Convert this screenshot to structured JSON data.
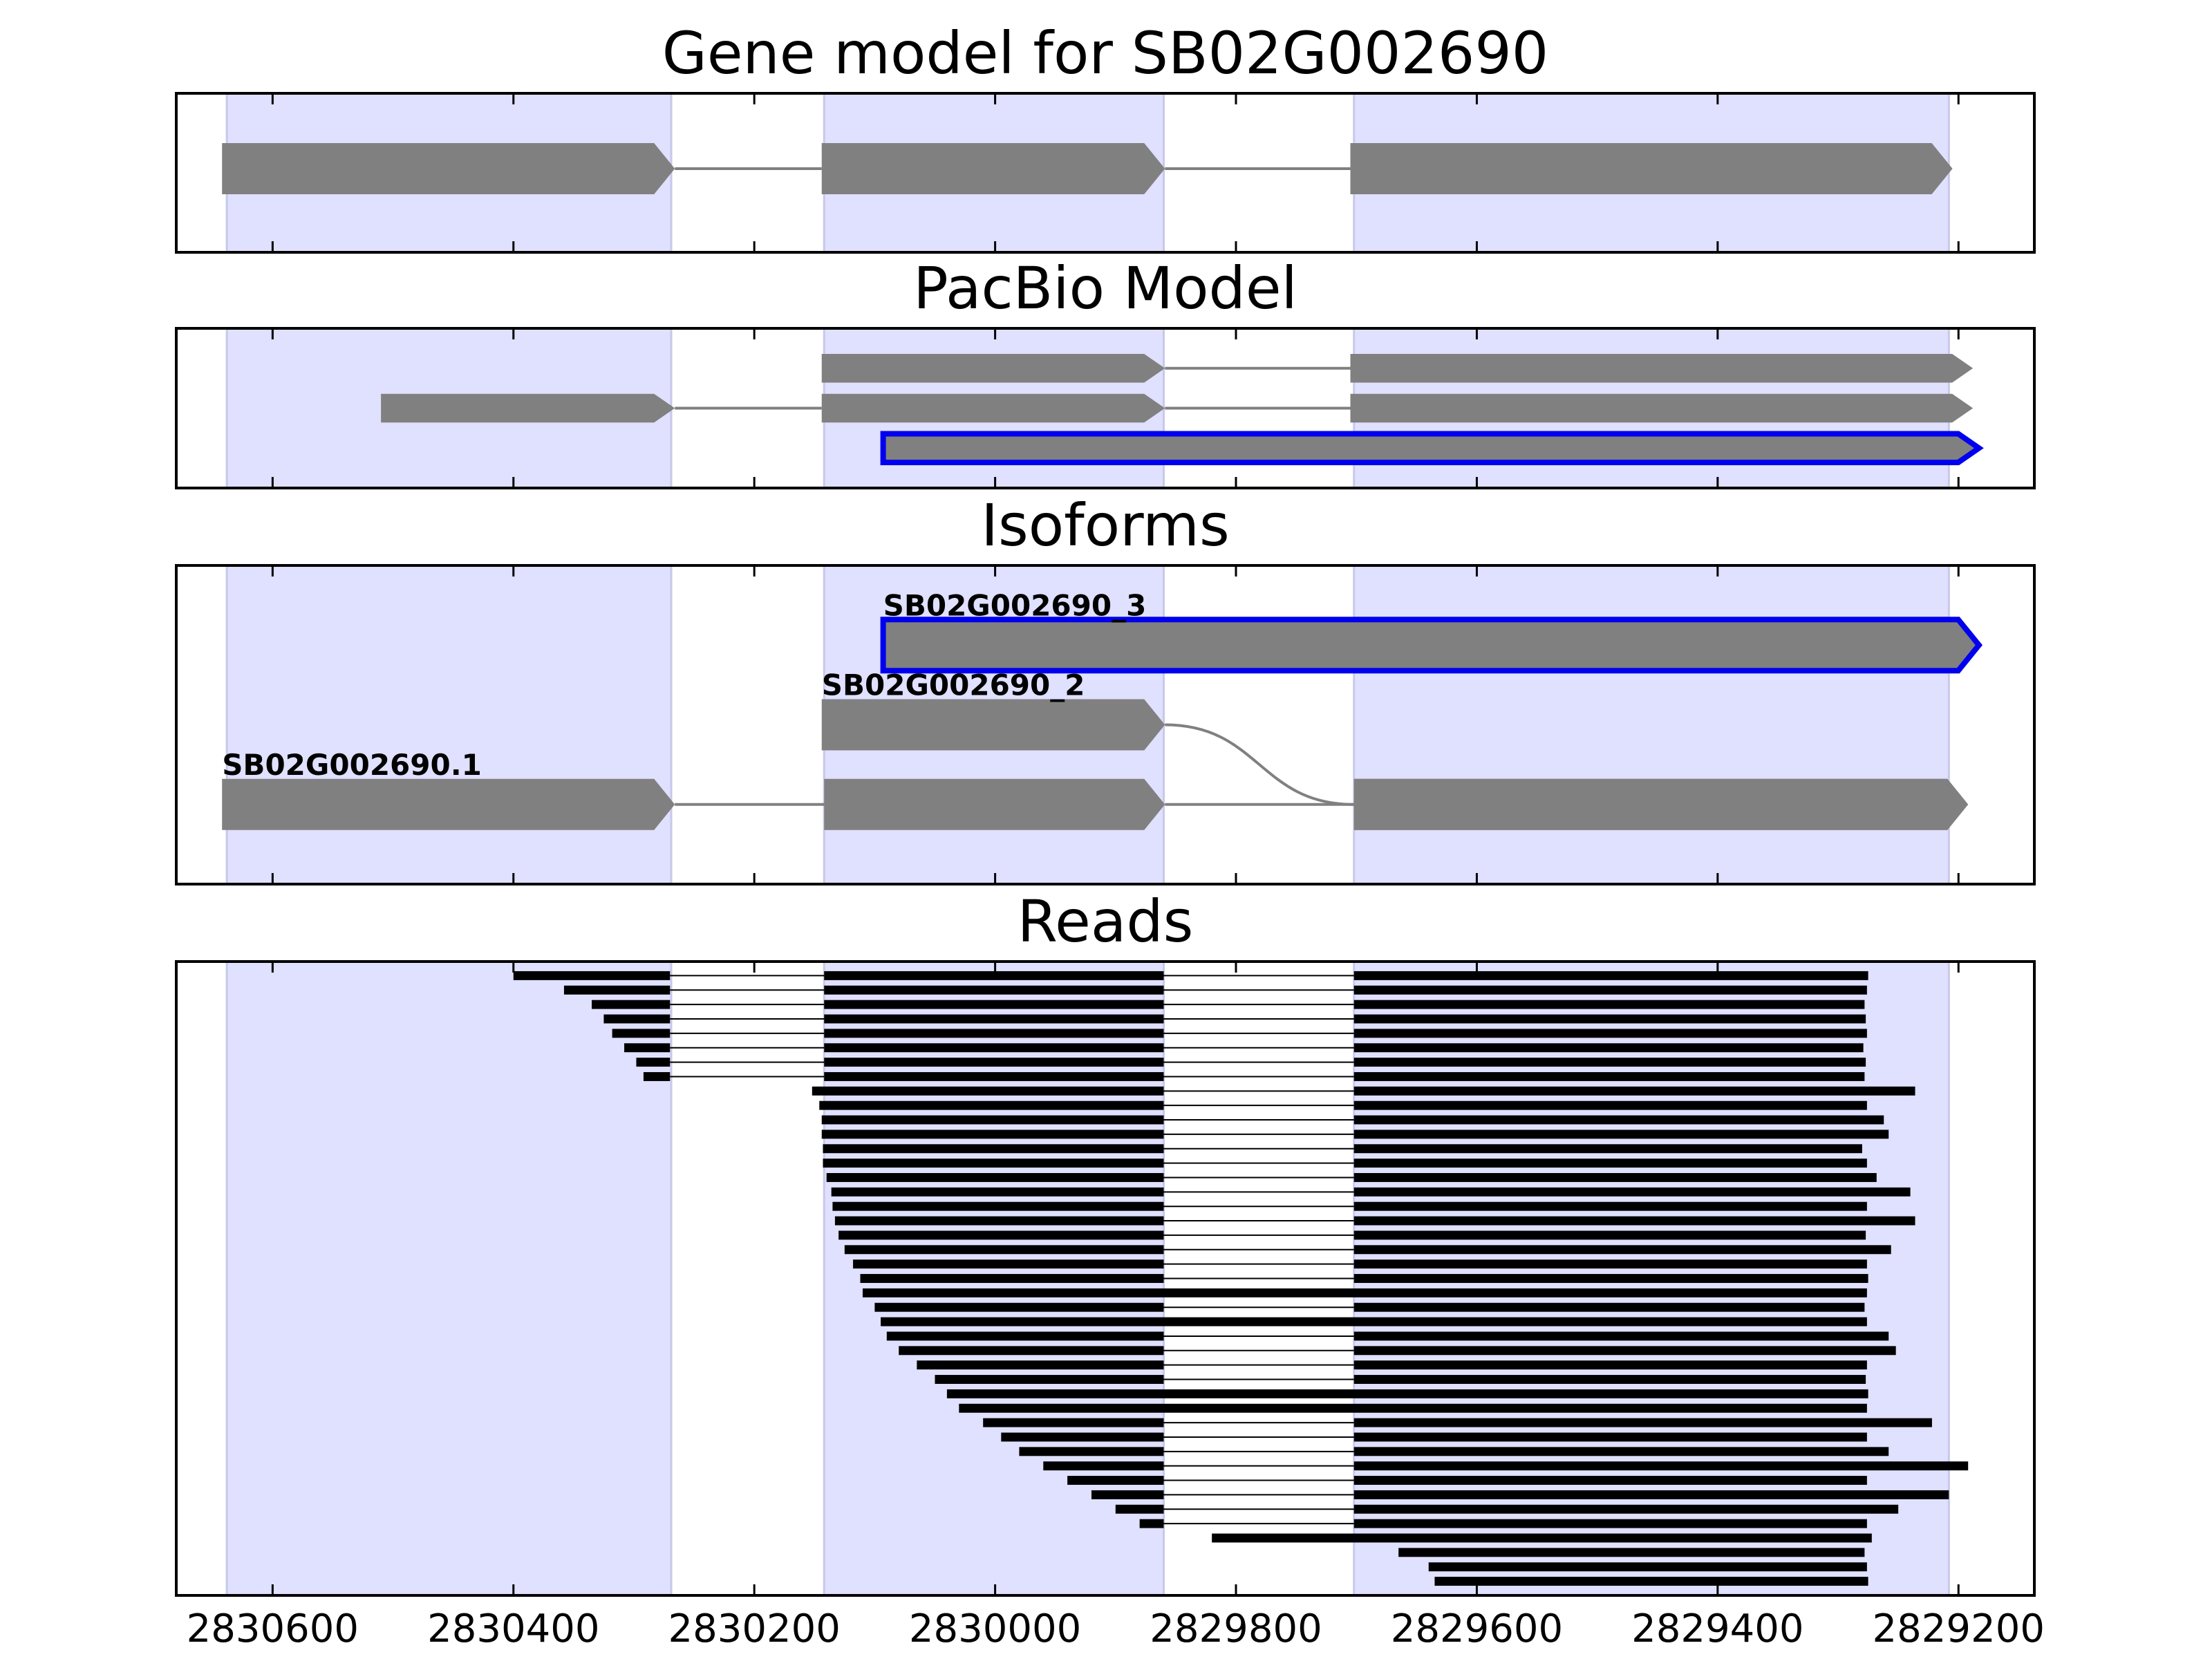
{
  "chart_data": [
    {
      "type": "track",
      "title": "Gene model for SB02G002690",
      "xlim": [
        2830680,
        2829137
      ],
      "xticks": [
        2830600,
        2830400,
        2830200,
        2830000,
        2829800,
        2829600,
        2829400,
        2829200
      ],
      "regions": [
        [
          2830638,
          2830269
        ],
        [
          2830142,
          2829860
        ],
        [
          2829702,
          2829208
        ]
      ],
      "region_color": "#e0e0ff",
      "color": "#808080",
      "transcripts": [
        {
          "blocks": [
            [
              2830642,
              2830266
            ],
            [
              2830144,
              2829859
            ],
            [
              2829705,
              2829205
            ]
          ]
        }
      ]
    },
    {
      "type": "track",
      "title": "PacBio Model",
      "xlim": [
        2830680,
        2829137
      ],
      "xticks": [
        2830600,
        2830400,
        2830200,
        2830000,
        2829800,
        2829600,
        2829400,
        2829200
      ],
      "regions": [
        [
          2830638,
          2830269
        ],
        [
          2830142,
          2829860
        ],
        [
          2829702,
          2829208
        ]
      ],
      "region_color": "#e0e0ff",
      "color": "#808080",
      "highlight_color": "#0000ee",
      "transcripts": [
        {
          "blocks": [
            [
              2830144,
              2829859
            ],
            [
              2829705,
              2829188
            ]
          ]
        },
        {
          "blocks": [
            [
              2830510,
              2830266
            ],
            [
              2830144,
              2829859
            ],
            [
              2829705,
              2829188
            ]
          ]
        },
        {
          "blocks": [
            [
              2830093,
              2829183
            ]
          ],
          "highlight": true
        }
      ]
    },
    {
      "type": "track",
      "title": "Isoforms",
      "xlim": [
        2830680,
        2829137
      ],
      "xticks": [
        2830600,
        2830400,
        2830200,
        2830000,
        2829800,
        2829600,
        2829400,
        2829200
      ],
      "regions": [
        [
          2830638,
          2830269
        ],
        [
          2830142,
          2829860
        ],
        [
          2829702,
          2829208
        ]
      ],
      "region_color": "#e0e0ff",
      "color": "#808080",
      "highlight_color": "#0000ee",
      "transcripts": [
        {
          "name": "SB02G002690_3",
          "blocks": [
            [
              2830093,
              2829183
            ]
          ],
          "highlight": true
        },
        {
          "name": "SB02G002690_2",
          "blocks": [
            [
              2830144,
              2829859
            ],
            [
              2829702,
              2829192
            ]
          ]
        },
        {
          "name": "SB02G002690.1",
          "blocks": [
            [
              2830642,
              2830266
            ],
            [
              2830142,
              2829859
            ],
            [
              2829702,
              2829192
            ]
          ]
        }
      ]
    },
    {
      "type": "reads",
      "title": "Reads",
      "xlim": [
        2830680,
        2829137
      ],
      "xticks": [
        2830600,
        2830400,
        2830200,
        2830000,
        2829800,
        2829600,
        2829400,
        2829200
      ],
      "regions": [
        [
          2830638,
          2830269
        ],
        [
          2830142,
          2829860
        ],
        [
          2829702,
          2829208
        ]
      ],
      "region_color": "#e0e0ff",
      "color": "#000000",
      "reads": [
        [
          [
            2830400,
            2830270
          ],
          [
            2830142,
            2829860
          ],
          [
            2829702,
            2829275
          ]
        ],
        [
          [
            2830358,
            2830270
          ],
          [
            2830142,
            2829860
          ],
          [
            2829702,
            2829276
          ]
        ],
        [
          [
            2830335,
            2830270
          ],
          [
            2830142,
            2829860
          ],
          [
            2829702,
            2829278
          ]
        ],
        [
          [
            2830325,
            2830270
          ],
          [
            2830142,
            2829860
          ],
          [
            2829702,
            2829277
          ]
        ],
        [
          [
            2830318,
            2830270
          ],
          [
            2830142,
            2829860
          ],
          [
            2829702,
            2829276
          ]
        ],
        [
          [
            2830308,
            2830270
          ],
          [
            2830142,
            2829860
          ],
          [
            2829702,
            2829279
          ]
        ],
        [
          [
            2830298,
            2830270
          ],
          [
            2830142,
            2829860
          ],
          [
            2829702,
            2829277
          ]
        ],
        [
          [
            2830292,
            2830270
          ],
          [
            2830142,
            2829860
          ],
          [
            2829702,
            2829278
          ]
        ],
        [
          [
            2830152,
            2829860
          ],
          [
            2829702,
            2829236
          ]
        ],
        [
          [
            2830146,
            2829860
          ],
          [
            2829702,
            2829276
          ]
        ],
        [
          [
            2830144,
            2829860
          ],
          [
            2829702,
            2829262
          ]
        ],
        [
          [
            2830144,
            2829860
          ],
          [
            2829702,
            2829258
          ]
        ],
        [
          [
            2830143,
            2829860
          ],
          [
            2829702,
            2829280
          ]
        ],
        [
          [
            2830143,
            2829860
          ],
          [
            2829702,
            2829276
          ]
        ],
        [
          [
            2830140,
            2829860
          ],
          [
            2829702,
            2829268
          ]
        ],
        [
          [
            2830136,
            2829860
          ],
          [
            2829702,
            2829240
          ]
        ],
        [
          [
            2830135,
            2829860
          ],
          [
            2829702,
            2829276
          ]
        ],
        [
          [
            2830133,
            2829860
          ],
          [
            2829702,
            2829236
          ]
        ],
        [
          [
            2830130,
            2829860
          ],
          [
            2829702,
            2829277
          ]
        ],
        [
          [
            2830125,
            2829860
          ],
          [
            2829702,
            2829256
          ]
        ],
        [
          [
            2830118,
            2829860
          ],
          [
            2829702,
            2829276
          ]
        ],
        [
          [
            2830112,
            2829860
          ],
          [
            2829702,
            2829275
          ]
        ],
        [
          [
            2830110,
            2829276
          ]
        ],
        [
          [
            2830100,
            2829860
          ],
          [
            2829702,
            2829278
          ]
        ],
        [
          [
            2830095,
            2829276
          ]
        ],
        [
          [
            2830090,
            2829860
          ],
          [
            2829702,
            2829258
          ]
        ],
        [
          [
            2830080,
            2829860
          ],
          [
            2829702,
            2829252
          ]
        ],
        [
          [
            2830065,
            2829860
          ],
          [
            2829702,
            2829276
          ]
        ],
        [
          [
            2830050,
            2829860
          ],
          [
            2829702,
            2829277
          ]
        ],
        [
          [
            2830040,
            2829275
          ]
        ],
        [
          [
            2830030,
            2829276
          ]
        ],
        [
          [
            2830010,
            2829860
          ],
          [
            2829702,
            2829222
          ]
        ],
        [
          [
            2829995,
            2829860
          ],
          [
            2829702,
            2829276
          ]
        ],
        [
          [
            2829980,
            2829860
          ],
          [
            2829702,
            2829258
          ]
        ],
        [
          [
            2829960,
            2829860
          ],
          [
            2829702,
            2829192
          ]
        ],
        [
          [
            2829940,
            2829860
          ],
          [
            2829702,
            2829276
          ]
        ],
        [
          [
            2829920,
            2829860
          ],
          [
            2829702,
            2829208
          ]
        ],
        [
          [
            2829900,
            2829860
          ],
          [
            2829702,
            2829250
          ]
        ],
        [
          [
            2829880,
            2829860
          ],
          [
            2829702,
            2829276
          ]
        ],
        [
          [
            2829820,
            2829272
          ]
        ],
        [
          [
            2829665,
            2829278
          ]
        ],
        [
          [
            2829640,
            2829276
          ]
        ],
        [
          [
            2829635,
            2829275
          ]
        ]
      ]
    }
  ]
}
